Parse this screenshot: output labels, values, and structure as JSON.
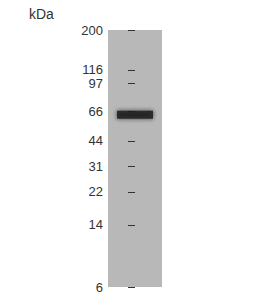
{
  "chart_data": {
    "type": "blot",
    "ylabel": "kDa",
    "values": [
      63
    ],
    "color": "#1a1a1a",
    "marker": "rect",
    "log": "y",
    "ylim": [
      6,
      200
    ],
    "yticks": [
      6,
      14,
      22,
      31,
      44,
      66,
      97,
      116,
      200
    ],
    "tick_labels": "y",
    "grid": false
  }
}
